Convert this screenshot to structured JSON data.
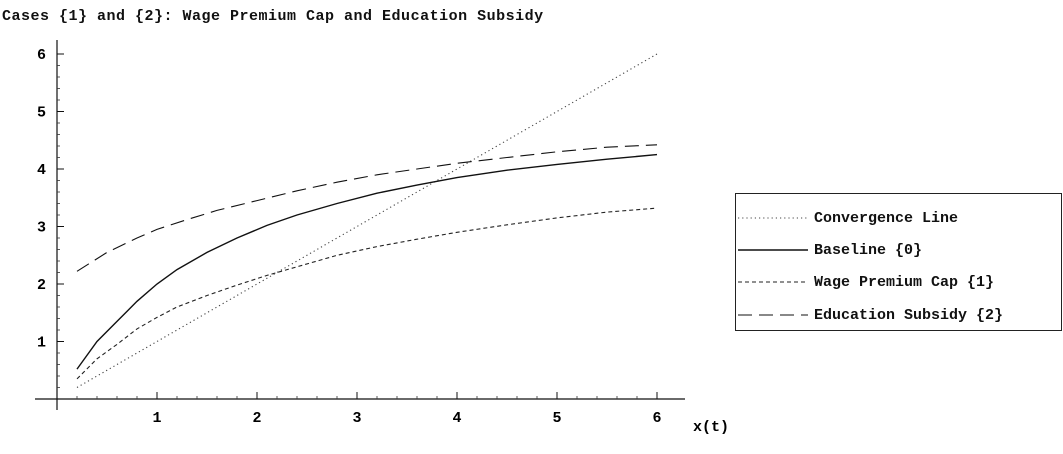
{
  "chart_data": {
    "type": "line",
    "title": "Cases {1} and {2}: Wage Premium Cap and Education Subsidy",
    "xlabel": "x(t)",
    "ylabel": "",
    "xlim": [
      0,
      6
    ],
    "ylim": [
      0,
      6
    ],
    "x_ticks": [
      "1",
      "2",
      "3",
      "4",
      "5",
      "6"
    ],
    "y_ticks": [
      "1",
      "2",
      "3",
      "4",
      "5",
      "6"
    ],
    "legend_position": "right",
    "series": [
      {
        "name": "Convergence Line",
        "style": "dotted",
        "color": "#444444",
        "x": [
          0.2,
          1,
          2,
          3,
          4,
          5,
          6
        ],
        "y": [
          0.2,
          1,
          2,
          3,
          4,
          5,
          6
        ]
      },
      {
        "name": "Baseline {0}",
        "style": "solid",
        "color": "#111111",
        "x": [
          0.2,
          0.4,
          0.6,
          0.8,
          1.0,
          1.2,
          1.5,
          1.8,
          2.1,
          2.4,
          2.8,
          3.2,
          3.6,
          4.0,
          4.5,
          5.0,
          5.5,
          6.0
        ],
        "y": [
          0.52,
          1.0,
          1.35,
          1.7,
          2.0,
          2.25,
          2.55,
          2.8,
          3.02,
          3.2,
          3.4,
          3.58,
          3.72,
          3.85,
          3.98,
          4.08,
          4.17,
          4.25
        ]
      },
      {
        "name": "Wage Premium Cap {1}",
        "style": "short-dash",
        "color": "#222222",
        "x": [
          0.2,
          0.4,
          0.6,
          0.8,
          1.0,
          1.2,
          1.5,
          1.8,
          2.1,
          2.4,
          2.8,
          3.2,
          3.6,
          4.0,
          4.5,
          5.0,
          5.5,
          6.0
        ],
        "y": [
          0.35,
          0.7,
          0.95,
          1.22,
          1.42,
          1.6,
          1.8,
          1.98,
          2.15,
          2.3,
          2.5,
          2.65,
          2.78,
          2.9,
          3.03,
          3.15,
          3.25,
          3.32
        ]
      },
      {
        "name": "Education Subsidy {2}",
        "style": "long-dash",
        "color": "#111111",
        "x": [
          0.2,
          0.5,
          0.8,
          1.0,
          1.3,
          1.6,
          2.0,
          2.4,
          2.8,
          3.2,
          3.6,
          4.0,
          4.5,
          5.0,
          5.5,
          6.0
        ],
        "y": [
          2.22,
          2.55,
          2.8,
          2.95,
          3.12,
          3.28,
          3.45,
          3.62,
          3.77,
          3.9,
          4.0,
          4.1,
          4.2,
          4.3,
          4.38,
          4.42
        ]
      }
    ]
  }
}
